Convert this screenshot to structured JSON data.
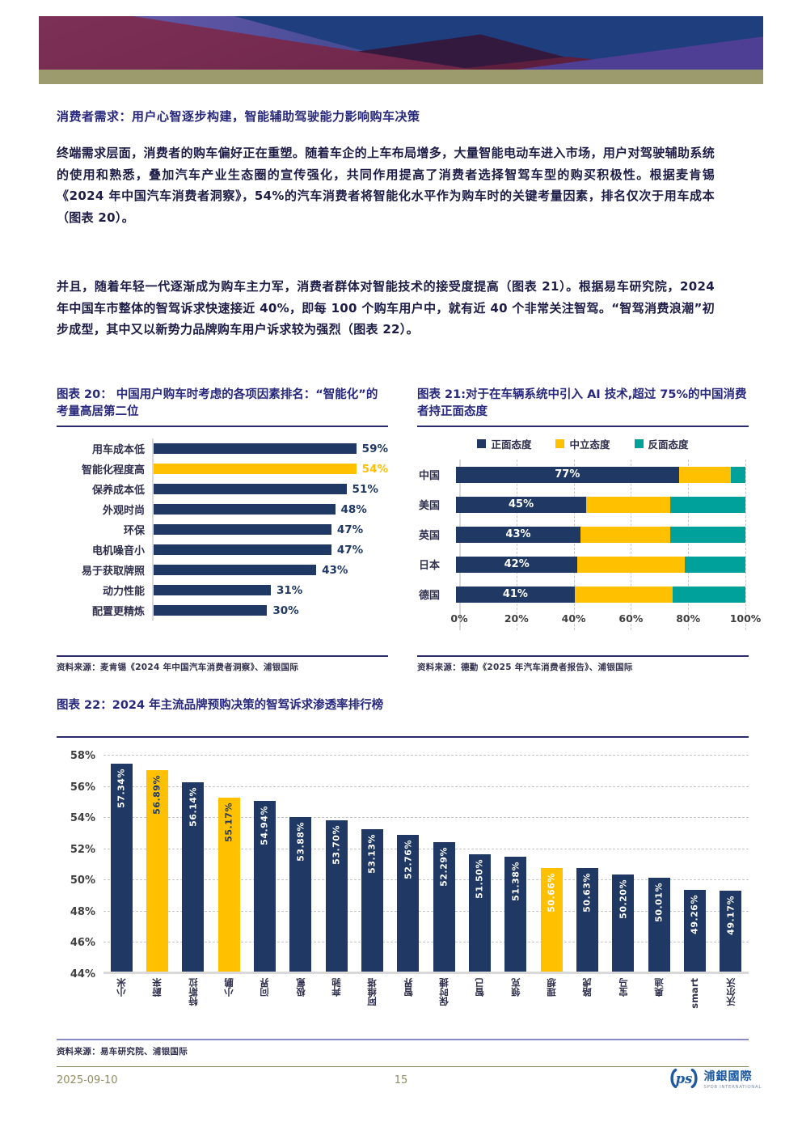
{
  "page": {
    "date": "2025-09-10",
    "page_number": "15"
  },
  "section": {
    "heading": "消费者需求：用户心智逐步构建，智能辅助驾驶能力影响购车决策"
  },
  "paragraphs": [
    "终端需求层面，消费者的购车偏好正在重塑。随着车企的上车布局增多，大量智能电动车进入市场，用户对驾驶辅助系统的使用和熟悉，叠加汽车产业生态圈的宣传强化，共同作用提高了消费者选择智驾车型的购买积极性。根据麦肯锡《2024 年中国汽车消费者洞察》，54%的汽车消费者将智能化水平作为购车时的关键考量因素，排名仅次于用车成本（图表 20）。",
    "并且，随着年轻一代逐渐成为购车主力军，消费者群体对智能技术的接受度提高（图表 21）。根据易车研究院，2024 年中国车市整体的智驾诉求快速接近 40%，即每 100 个购车用户中，就有近 40 个非常关注智驾。“智驾消费浪潮”初步成型，其中又以新势力品牌购车用户诉求较为强烈（图表 22）。"
  ],
  "colors": {
    "navy": "#1F3864",
    "yellow": "#FFC000",
    "teal": "#00A09B",
    "heading": "#28287C",
    "olive": "#9C9B6E",
    "logo_blue": "#1E5AA0"
  },
  "chart_data": [
    {
      "id": "figure-20",
      "type": "bar",
      "orientation": "horizontal",
      "title": "图表 20： 中国用户购车时考虑的各项因素排名：“智能化”的考量高居第二位",
      "source": "资料来源：麦肯锡《2024 年中国汽车消费者洞察》、浦银国际",
      "categories": [
        "用车成本低",
        "智能化程度高",
        "保养成本低",
        "外观时尚",
        "环保",
        "电机噪音小",
        "易于获取牌照",
        "动力性能",
        "配置更精炼"
      ],
      "values": [
        59,
        54,
        51,
        48,
        47,
        47,
        43,
        31,
        30
      ],
      "unit": "%",
      "bar_colors": [
        "navy",
        "yellow",
        "navy",
        "navy",
        "navy",
        "navy",
        "navy",
        "navy",
        "navy"
      ],
      "highlight_category": "智能化程度高",
      "xlim": [
        0,
        62
      ],
      "grid": false
    },
    {
      "id": "figure-21",
      "type": "bar",
      "subtype": "stacked-100",
      "orientation": "horizontal",
      "title": "图表 21:对于在车辆系统中引入 AI 技术,超过 75%的中国消费者持正面态度",
      "source": "资料来源：德勤《2025 年汽车消费者报告》、浦银国际",
      "categories": [
        "中国",
        "美国",
        "英国",
        "日本",
        "德国"
      ],
      "series": [
        {
          "name": "正面态度",
          "color": "navy",
          "values": [
            77,
            45,
            43,
            42,
            41
          ],
          "labeled": true
        },
        {
          "name": "中立态度",
          "color": "yellow",
          "values": [
            18,
            29,
            31,
            37,
            34
          ]
        },
        {
          "name": "反面态度",
          "color": "teal",
          "values": [
            5,
            26,
            26,
            21,
            25
          ]
        }
      ],
      "x_ticks": [
        "0%",
        "20%",
        "40%",
        "60%",
        "80%",
        "100%"
      ],
      "xlim": [
        0,
        100
      ],
      "legend_position": "top",
      "grid": "dashed-vertical"
    },
    {
      "id": "figure-22",
      "type": "bar",
      "orientation": "vertical",
      "title": "图表 22：2024 年主流品牌预购决策的智驾诉求渗透率排行榜",
      "source": "资料来源：易车研究院、浦银国际",
      "categories": [
        "小米",
        "蔚来",
        "特斯拉",
        "小鹏",
        "问界",
        "极氪",
        "奔驰",
        "阿维塔",
        "智界",
        "保时捷",
        "智己",
        "领克",
        "理想",
        "路虎",
        "宝马",
        "奥迪",
        "smart",
        "沃尔沃"
      ],
      "values": [
        57.34,
        56.89,
        56.14,
        55.17,
        54.94,
        53.88,
        53.7,
        53.13,
        52.76,
        52.29,
        51.5,
        51.38,
        50.66,
        50.63,
        50.2,
        50.01,
        49.26,
        49.17
      ],
      "value_labels": [
        "57.34%",
        "56.89%",
        "56.14%",
        "55.17%",
        "54.94%",
        "53.88%",
        "53.70%",
        "53.13%",
        "52.76%",
        "52.29%",
        "51.50%",
        "51.38%",
        "50.66%",
        "50.63%",
        "50.20%",
        "50.01%",
        "49.26%",
        "49.17%"
      ],
      "bar_colors": [
        "navy",
        "yellow",
        "navy",
        "yellow",
        "navy",
        "navy",
        "navy",
        "navy",
        "navy",
        "navy",
        "navy",
        "navy",
        "yellow",
        "navy",
        "navy",
        "navy",
        "navy",
        "navy"
      ],
      "label_colors": [
        "white",
        "navy",
        "white",
        "navy",
        "white",
        "white",
        "white",
        "white",
        "white",
        "white",
        "white",
        "white",
        "white",
        "white",
        "white",
        "white",
        "white",
        "white"
      ],
      "y_ticks": [
        "58%",
        "56%",
        "54%",
        "52%",
        "50%",
        "48%",
        "46%",
        "44%"
      ],
      "ylim": [
        44,
        58
      ],
      "grid": "dashed-horizontal"
    }
  ],
  "footer": {
    "logo_mark": "ps",
    "logo_cn": "浦銀國際",
    "logo_en": "SPDB INTERNATIONAL"
  }
}
